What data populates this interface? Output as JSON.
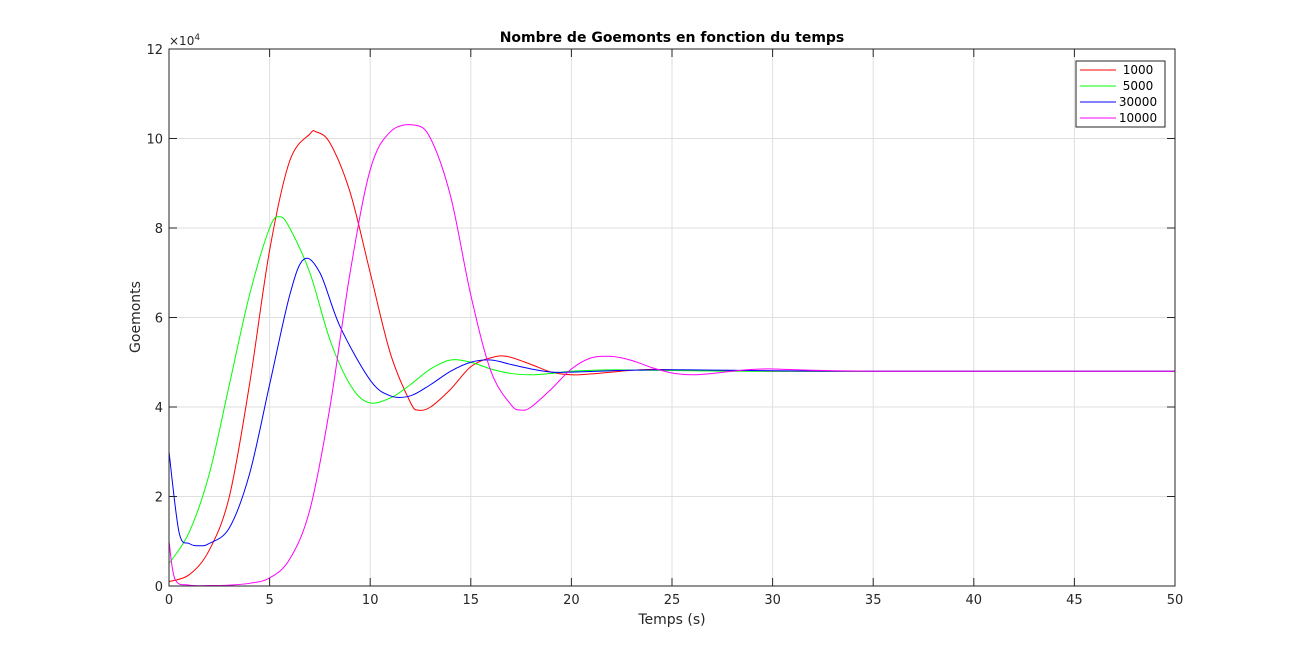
{
  "chart_data": {
    "type": "line",
    "title": "Nombre de Goemonts en fonction du temps",
    "xlabel": "Temps (s)",
    "ylabel": "Goemonts",
    "y_multiplier": "×10",
    "y_multiplier_exponent": "4",
    "xlim": [
      0,
      50
    ],
    "ylim": [
      0,
      120000
    ],
    "x_ticks": [
      0,
      5,
      10,
      15,
      20,
      25,
      30,
      35,
      40,
      45,
      50
    ],
    "y_ticks": [
      0,
      2,
      4,
      6,
      8,
      10,
      12
    ],
    "y_tick_values": [
      0,
      20000,
      40000,
      60000,
      80000,
      100000,
      120000
    ],
    "grid": true,
    "legend_position": "top-right",
    "series": [
      {
        "name": "1000",
        "color": "#ff0000",
        "x": [
          0,
          1,
          2,
          3,
          4,
          5,
          6,
          7,
          7.3,
          8,
          9,
          10,
          11,
          12,
          12.4,
          13,
          14,
          15,
          16,
          16.8,
          18,
          19,
          20,
          21,
          22,
          23,
          24,
          25,
          27,
          30,
          35,
          40,
          45,
          50
        ],
        "y": [
          1000,
          2500,
          8000,
          20000,
          45000,
          75000,
          95000,
          101000,
          101500,
          99000,
          88000,
          70000,
          52000,
          41000,
          39300,
          40000,
          44000,
          49000,
          51000,
          51300,
          49500,
          47800,
          47200,
          47400,
          47800,
          48200,
          48400,
          48300,
          48100,
          48000,
          48000,
          48000,
          48000,
          48000
        ]
      },
      {
        "name": "5000",
        "color": "#00ff00",
        "x": [
          0,
          1,
          2,
          3,
          4,
          5,
          5.5,
          6,
          7,
          8,
          9,
          9.9,
          11,
          12,
          13,
          14,
          15,
          16,
          17,
          18,
          19,
          20,
          22,
          24,
          26,
          28,
          30,
          35,
          40,
          45,
          50
        ],
        "y": [
          5000,
          12000,
          25000,
          45000,
          65000,
          80000,
          82500,
          80000,
          70000,
          55000,
          45000,
          41000,
          42000,
          45000,
          48500,
          50500,
          50000,
          48500,
          47500,
          47200,
          47500,
          48000,
          48300,
          48200,
          48100,
          48000,
          48000,
          48000,
          48000,
          48000,
          48000
        ]
      },
      {
        "name": "30000",
        "color": "#0000ff",
        "x": [
          0,
          0.5,
          1,
          1.5,
          2,
          3,
          4,
          5,
          6,
          6.7,
          7.5,
          8.5,
          10,
          11,
          12,
          13,
          14,
          15,
          16,
          17,
          18,
          19,
          20,
          22,
          24,
          26,
          28,
          30,
          35,
          40,
          45,
          50
        ],
        "y": [
          30000,
          12000,
          9500,
          9000,
          9500,
          13000,
          25000,
          45000,
          65000,
          73000,
          70000,
          58000,
          46000,
          42500,
          42500,
          45000,
          48000,
          50000,
          50500,
          49500,
          48500,
          47800,
          47800,
          48100,
          48300,
          48300,
          48200,
          48100,
          48000,
          48000,
          48000,
          48000
        ]
      },
      {
        "name": "10000",
        "color": "#ff00ff",
        "x": [
          0,
          0.3,
          1,
          2,
          3,
          4,
          5,
          6,
          7,
          8,
          9,
          10,
          11,
          12.2,
          13,
          14,
          15,
          16,
          17,
          17.5,
          18,
          19,
          20,
          21,
          22,
          23,
          24,
          25,
          26,
          27,
          28,
          29,
          30,
          32,
          35,
          40,
          45,
          50
        ],
        "y": [
          10000,
          1500,
          200,
          100,
          200,
          600,
          1800,
          6000,
          17000,
          40000,
          70000,
          93000,
          101500,
          103000,
          100000,
          87000,
          65000,
          48000,
          40500,
          39300,
          40000,
          44000,
          48500,
          51000,
          51300,
          50400,
          48800,
          47600,
          47200,
          47500,
          48000,
          48400,
          48500,
          48200,
          48000,
          48000,
          48000,
          48000
        ]
      }
    ]
  }
}
